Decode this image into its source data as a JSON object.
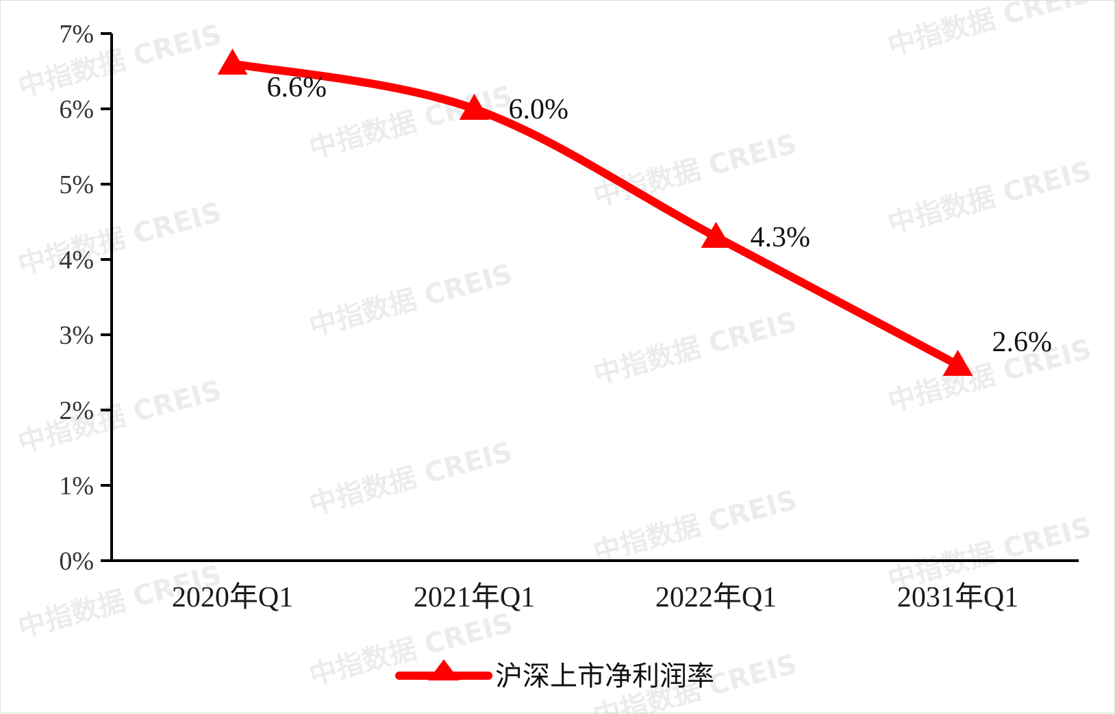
{
  "watermark": "中指数据 CREIS",
  "chart_data": {
    "type": "line",
    "categories": [
      "2020年Q1",
      "2021年Q1",
      "2022年Q1",
      "2031年Q1"
    ],
    "series": [
      {
        "name": "沪深上市净利润率",
        "values": [
          6.6,
          6.0,
          4.3,
          2.6
        ],
        "labels": [
          "6.6%",
          "6.0%",
          "4.3%",
          "2.6%"
        ],
        "color": "#ff0000",
        "marker": "triangle",
        "smooth": true
      }
    ],
    "y_ticks": [
      "0%",
      "1%",
      "2%",
      "3%",
      "4%",
      "5%",
      "6%",
      "7%"
    ],
    "ylim": [
      0,
      7
    ],
    "title": "",
    "xlabel": "",
    "ylabel": "",
    "grid": false,
    "legend_position": "bottom",
    "axis_color": "#000000"
  }
}
